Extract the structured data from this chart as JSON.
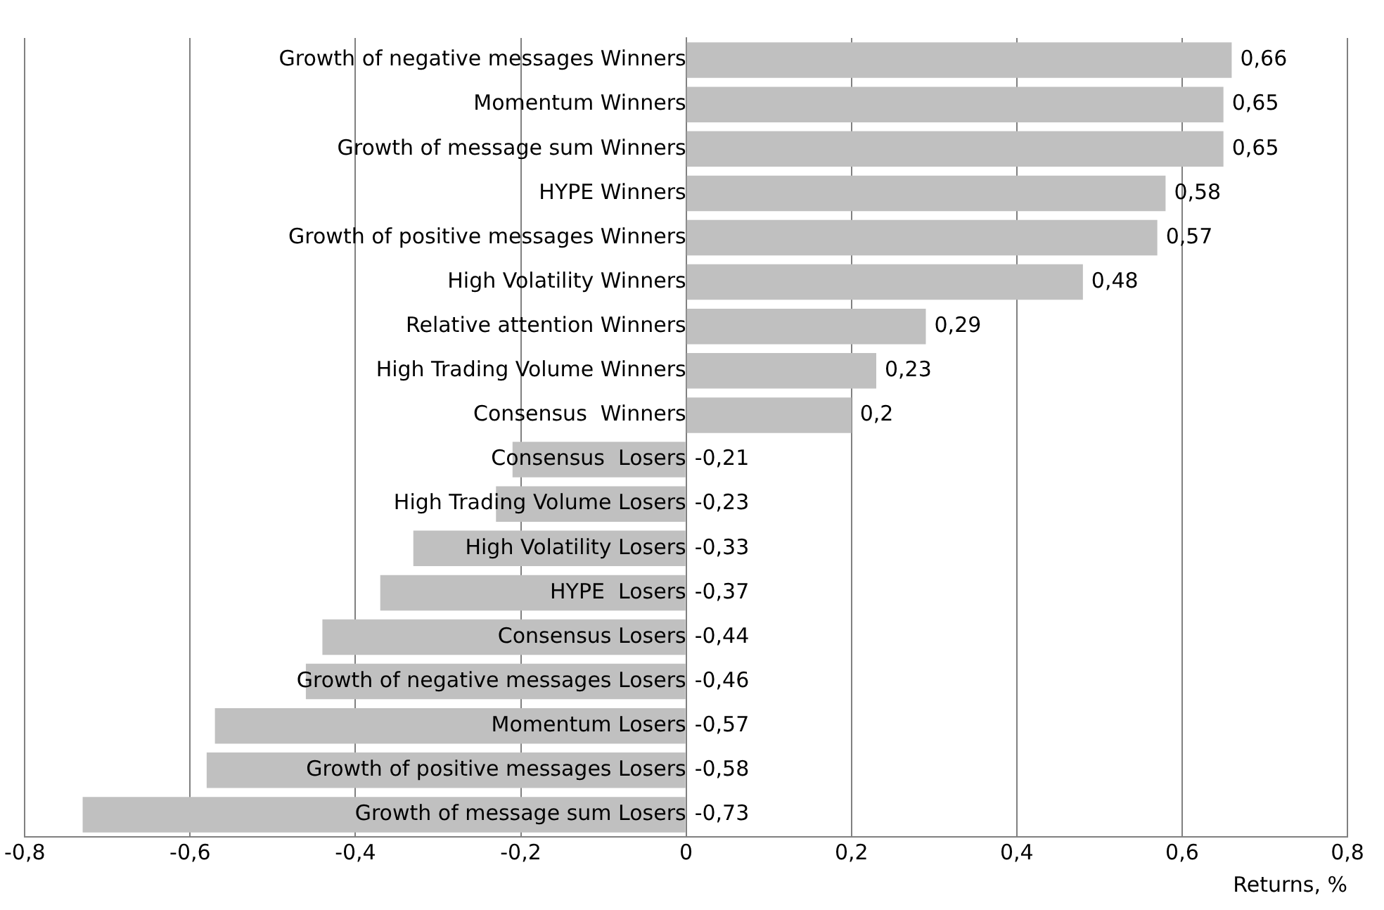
{
  "chart_data": {
    "type": "bar",
    "orientation": "horizontal",
    "xlabel": "Returns, %",
    "categories": [
      "Growth of negative messages Winners",
      "Momentum Winners",
      "Growth of message sum Winners",
      "HYPE Winners",
      "Growth of positive messages Winners",
      "High Volatility Winners",
      "Relative attention Winners",
      "High Trading Volume Winners",
      "Consensus  Winners",
      "Consensus  Losers",
      "High Trading Volume Losers",
      "High Volatility Losers",
      "HYPE  Losers",
      "Consensus Losers",
      "Growth of negative messages Losers",
      "Momentum Losers",
      "Growth of positive messages Losers",
      "Growth of message sum Losers"
    ],
    "values": [
      0.66,
      0.65,
      0.65,
      0.58,
      0.57,
      0.48,
      0.29,
      0.23,
      0.2,
      -0.21,
      -0.23,
      -0.33,
      -0.37,
      -0.44,
      -0.46,
      -0.57,
      -0.58,
      -0.73
    ],
    "value_labels": [
      "0,66",
      "0,65",
      "0,65",
      "0,58",
      "0,57",
      "0,48",
      "0,29",
      "0,23",
      "0,2",
      "-0,21",
      "-0,23",
      "-0,33",
      "-0,37",
      "-0,44",
      "-0,46",
      "-0,57",
      "-0,58",
      "-0,73"
    ],
    "color": "#c0c0c0",
    "xlim": [
      -0.8,
      0.8
    ],
    "xticks": [
      {
        "value": -0.8,
        "label": "-0,8"
      },
      {
        "value": -0.6,
        "label": "-0,6"
      },
      {
        "value": -0.4,
        "label": "-0,4"
      },
      {
        "value": -0.2,
        "label": "-0,2"
      },
      0,
      {
        "value": 0.2,
        "label": "0,2"
      },
      {
        "value": 0.4,
        "label": "0,4"
      },
      {
        "value": 0.6,
        "label": "0,6"
      },
      {
        "value": 0.8,
        "label": "0,8"
      }
    ],
    "grid": "x",
    "legend": false
  }
}
